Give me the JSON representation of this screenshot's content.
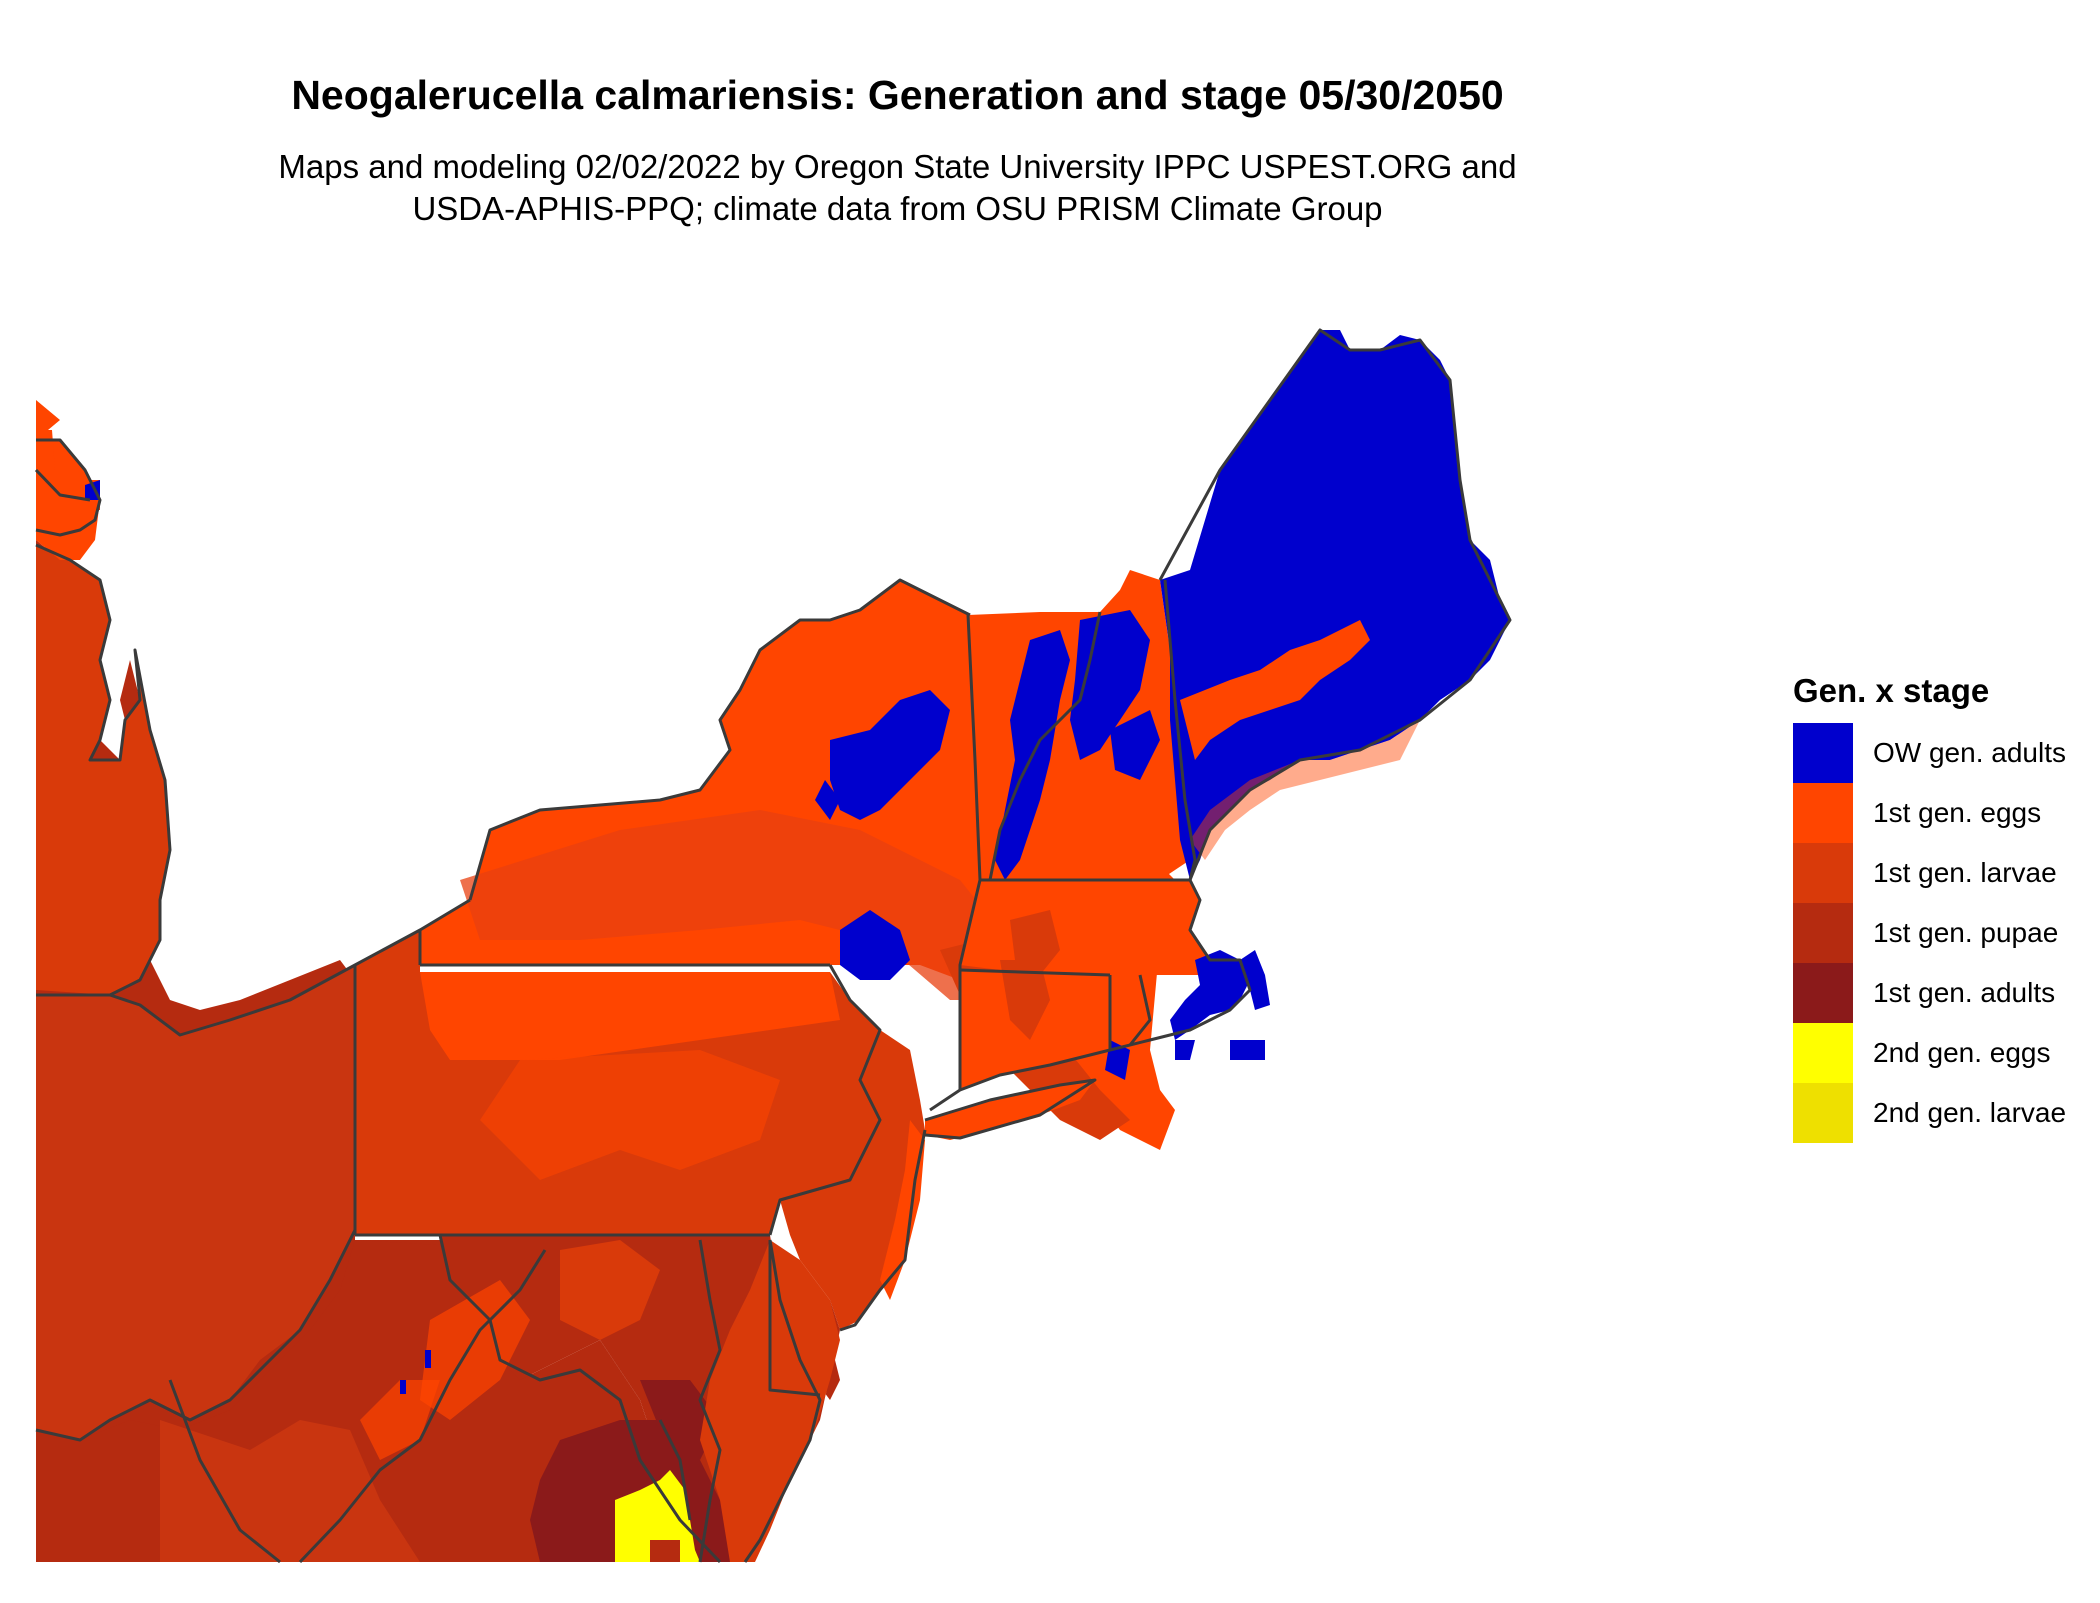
{
  "title": "Neogalerucella calmariensis: Generation and stage 05/30/2050",
  "subtitle": {
    "line1": "Maps and modeling 02/02/2022 by Oregon State University IPPC USPEST.ORG and",
    "line2": "USDA-APHIS-PPQ; climate data from OSU PRISM Climate Group"
  },
  "legend": {
    "title": "Gen. x stage",
    "items": [
      {
        "label": "OW gen. adults",
        "color": "#0000cd"
      },
      {
        "label": "1st gen. eggs",
        "color": "#ff4500"
      },
      {
        "label": "1st gen. larvae",
        "color": "#d93a0a"
      },
      {
        "label": "1st gen. pupae",
        "color": "#b52b10"
      },
      {
        "label": "1st gen. adults",
        "color": "#8b1a1a"
      },
      {
        "label": "2nd gen. eggs",
        "color": "#ffff00"
      },
      {
        "label": "2nd gen. larvae",
        "color": "#eee000"
      }
    ]
  },
  "colors": {
    "border": "#3a3a3a",
    "background": "#ffffff"
  }
}
